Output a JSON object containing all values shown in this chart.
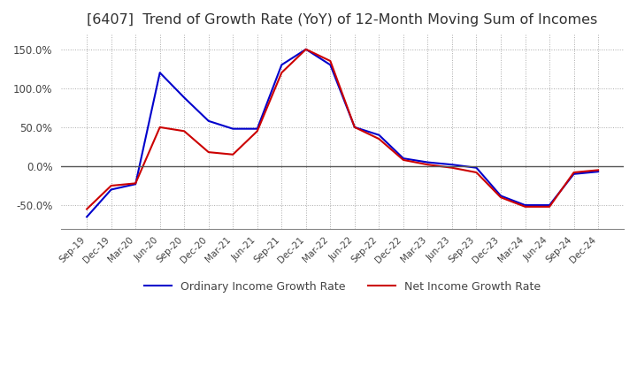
{
  "title": "[6407]  Trend of Growth Rate (YoY) of 12-Month Moving Sum of Incomes",
  "title_fontsize": 11.5,
  "ylim": [
    -80,
    170
  ],
  "yticks": [
    -50,
    0,
    50,
    100,
    150
  ],
  "ytick_labels": [
    "-50.0%",
    "0.0%",
    "50.0%",
    "100.0%",
    "150.0%"
  ],
  "background_color": "#ffffff",
  "grid_color": "#aaaaaa",
  "ordinary_color": "#0000cc",
  "net_color": "#cc0000",
  "legend_ordinary": "Ordinary Income Growth Rate",
  "legend_net": "Net Income Growth Rate",
  "x_labels": [
    "Sep-19",
    "Dec-19",
    "Mar-20",
    "Jun-20",
    "Sep-20",
    "Dec-20",
    "Mar-21",
    "Jun-21",
    "Sep-21",
    "Dec-21",
    "Mar-22",
    "Jun-22",
    "Sep-22",
    "Dec-22",
    "Mar-23",
    "Jun-23",
    "Sep-23",
    "Dec-23",
    "Mar-24",
    "Jun-24",
    "Sep-24",
    "Dec-24"
  ],
  "ordinary_income": [
    -65,
    -30,
    -23,
    120,
    88,
    58,
    48,
    48,
    130,
    150,
    130,
    50,
    40,
    10,
    5,
    2,
    -2,
    -38,
    -50,
    -50,
    -10,
    -7
  ],
  "net_income": [
    -55,
    -25,
    -22,
    50,
    45,
    18,
    15,
    45,
    120,
    150,
    135,
    50,
    35,
    8,
    2,
    -2,
    -8,
    -40,
    -52,
    -52,
    -8,
    -5
  ]
}
